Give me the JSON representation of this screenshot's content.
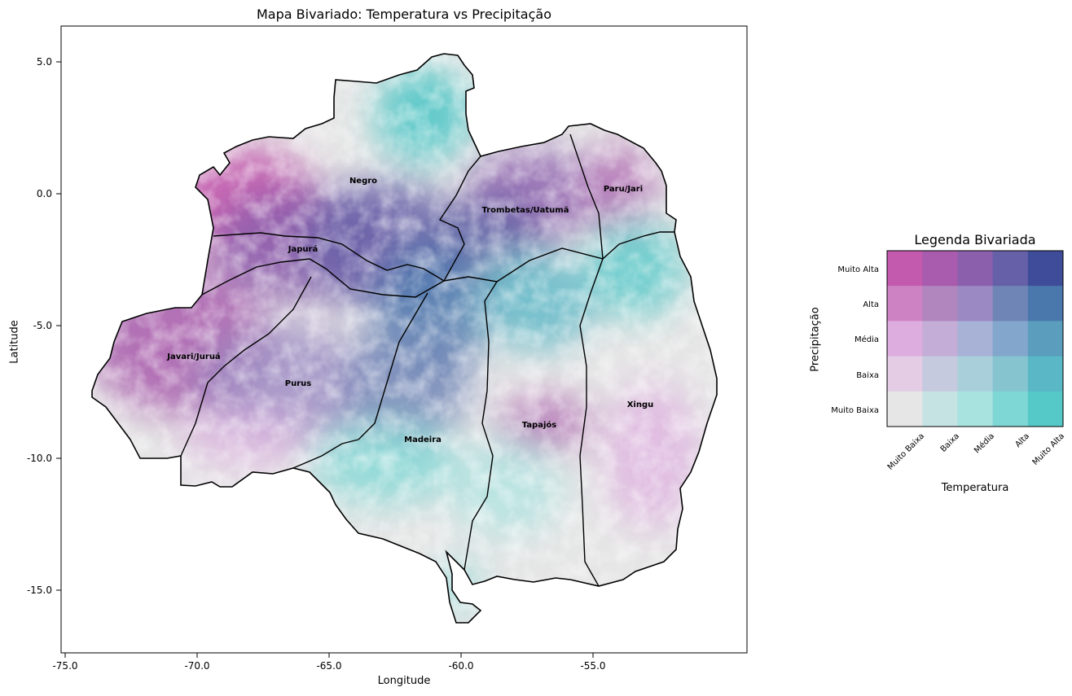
{
  "map": {
    "title": "Mapa Bivariado: Temperatura vs Precipitação",
    "xlabel": "Longitude",
    "ylabel": "Latitude",
    "xticks": [
      "-75.0",
      "-70.0",
      "-65.0",
      "-60.0",
      "-55.0"
    ],
    "yticks": [
      "5.0",
      "0.0",
      "-5.0",
      "-10.0",
      "-15.0"
    ],
    "regions": [
      "Negro",
      "Japurá",
      "Javari/Juruá",
      "Purus",
      "Madeira",
      "Trombetas/Uatumã",
      "Paru/Jari",
      "Tapajós",
      "Xingu"
    ]
  },
  "legend": {
    "title": "Legenda Bivariada",
    "xlabel": "Temperatura",
    "ylabel": "Precipitação",
    "x_categories": [
      "Muito Baixa",
      "Baixa",
      "Média",
      "Alta",
      "Muito Alta"
    ],
    "y_categories": [
      "Muito Alta",
      "Alta",
      "Média",
      "Baixa",
      "Muito Baixa"
    ],
    "colors": [
      [
        "#c35aad",
        "#a95cad",
        "#8c5fad",
        "#6660a8",
        "#3f4c99"
      ],
      [
        "#cd83c3",
        "#b185be",
        "#9a89c2",
        "#6f85b5",
        "#4a78ad"
      ],
      [
        "#deade0",
        "#c4add6",
        "#a8b1d6",
        "#82a6cc",
        "#5a9dbd"
      ],
      [
        "#e4cde4",
        "#c6cadf",
        "#a9cfdb",
        "#86c4cf",
        "#5ab7c6"
      ],
      [
        "#e6e6e6",
        "#c6e3e4",
        "#a8e3e0",
        "#7fd7d5",
        "#55c8c8"
      ]
    ]
  }
}
